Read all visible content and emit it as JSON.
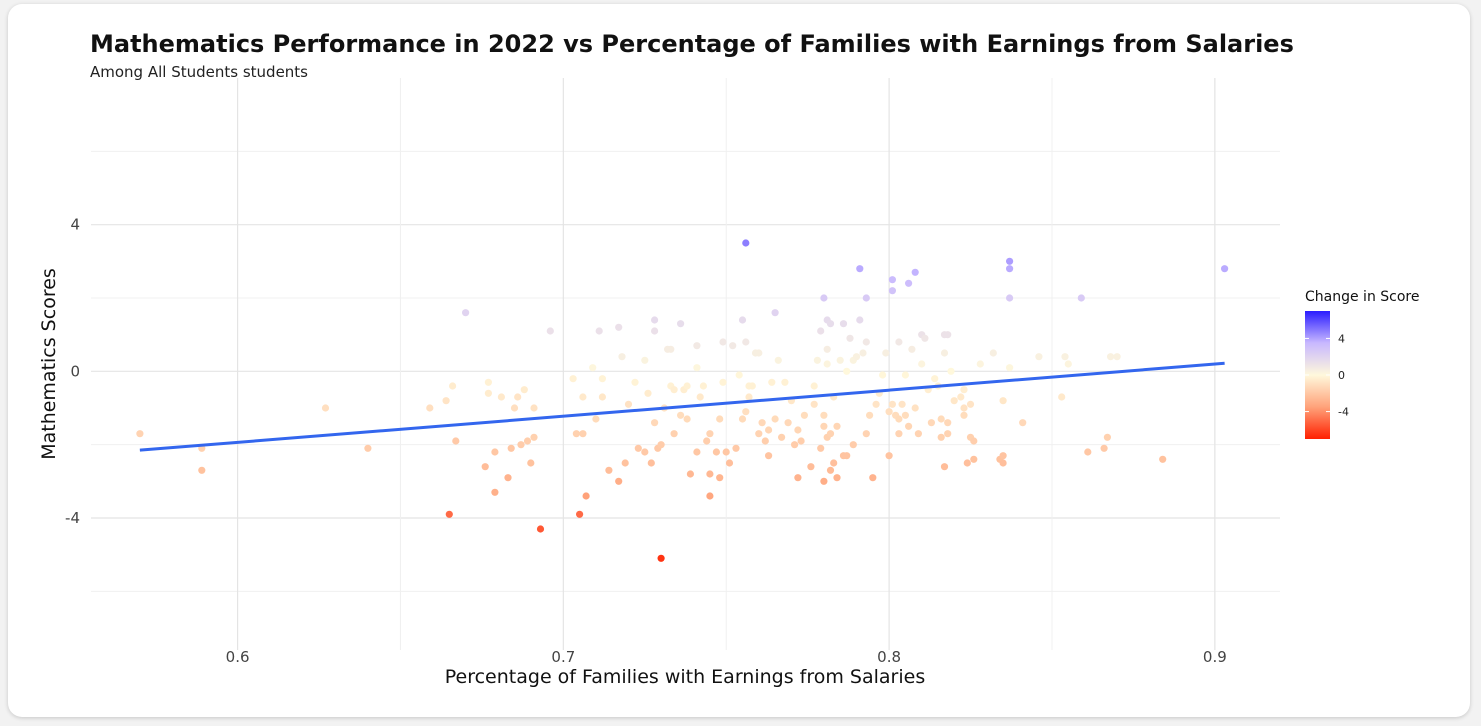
{
  "chart_data": {
    "type": "scatter",
    "title": "Mathematics Performance in 2022 vs Percentage of Families with Earnings from Salaries",
    "subtitle": "Among All Students students",
    "xlabel": "Percentage of Families with Earnings from Salaries",
    "ylabel": "Mathematics Scores",
    "xlim": [
      0.555,
      0.92
    ],
    "ylim": [
      -7.6,
      8.0
    ],
    "x_ticks": [
      0.6,
      0.7,
      0.8,
      0.9
    ],
    "x_tick_labels": [
      "0.6",
      "0.7",
      "0.8",
      "0.9"
    ],
    "y_ticks": [
      -4,
      0,
      4
    ],
    "y_tick_labels": [
      "-4",
      "0",
      "4"
    ],
    "grid": true,
    "legend": {
      "title": "Change in Score",
      "position": "right",
      "ticks": [
        4,
        0,
        -4
      ],
      "tick_labels": [
        "4",
        "0",
        "-4"
      ],
      "range": [
        -7,
        7
      ],
      "colors": {
        "low": "#ff2000",
        "mid": "#fff8dc",
        "high": "#2a1cff"
      }
    },
    "trend_line": {
      "x": [
        0.57,
        0.903
      ],
      "y": [
        -2.15,
        0.22
      ],
      "color": "#3366ee"
    },
    "points": [
      {
        "x": 0.57,
        "y": -1.7,
        "c": -1.5
      },
      {
        "x": 0.589,
        "y": -2.1,
        "c": -1.6
      },
      {
        "x": 0.589,
        "y": -2.7,
        "c": -2.2
      },
      {
        "x": 0.627,
        "y": -1.0,
        "c": -1.0
      },
      {
        "x": 0.64,
        "y": -2.1,
        "c": -1.8
      },
      {
        "x": 0.659,
        "y": -1.0,
        "c": -1.0
      },
      {
        "x": 0.664,
        "y": -0.8,
        "c": -0.8
      },
      {
        "x": 0.665,
        "y": -3.9,
        "c": -5.0
      },
      {
        "x": 0.666,
        "y": -0.4,
        "c": -0.5
      },
      {
        "x": 0.667,
        "y": -1.9,
        "c": -1.9
      },
      {
        "x": 0.67,
        "y": 1.6,
        "c": 2.0
      },
      {
        "x": 0.676,
        "y": -2.6,
        "c": -2.4
      },
      {
        "x": 0.677,
        "y": -0.3,
        "c": -0.3
      },
      {
        "x": 0.677,
        "y": -0.6,
        "c": -0.5
      },
      {
        "x": 0.679,
        "y": -3.3,
        "c": -2.9
      },
      {
        "x": 0.679,
        "y": -2.2,
        "c": -2.0
      },
      {
        "x": 0.681,
        "y": -0.7,
        "c": -0.6
      },
      {
        "x": 0.683,
        "y": -2.9,
        "c": -2.8
      },
      {
        "x": 0.684,
        "y": -2.1,
        "c": -2.0
      },
      {
        "x": 0.685,
        "y": -1.0,
        "c": -1.0
      },
      {
        "x": 0.686,
        "y": -0.7,
        "c": -0.8
      },
      {
        "x": 0.687,
        "y": -2.0,
        "c": -1.8
      },
      {
        "x": 0.688,
        "y": -0.5,
        "c": -0.5
      },
      {
        "x": 0.689,
        "y": -1.9,
        "c": -1.7
      },
      {
        "x": 0.69,
        "y": -2.5,
        "c": -2.2
      },
      {
        "x": 0.691,
        "y": -1.8,
        "c": -1.6
      },
      {
        "x": 0.691,
        "y": -1.0,
        "c": -0.9
      },
      {
        "x": 0.693,
        "y": -4.3,
        "c": -5.5
      },
      {
        "x": 0.696,
        "y": 1.1,
        "c": 1.3
      },
      {
        "x": 0.703,
        "y": -0.2,
        "c": -0.3
      },
      {
        "x": 0.704,
        "y": -1.7,
        "c": -1.6
      },
      {
        "x": 0.705,
        "y": -3.9,
        "c": -5.0
      },
      {
        "x": 0.706,
        "y": -0.7,
        "c": -0.6
      },
      {
        "x": 0.706,
        "y": -1.7,
        "c": -1.6
      },
      {
        "x": 0.707,
        "y": -3.4,
        "c": -3.5
      },
      {
        "x": 0.709,
        "y": 0.1,
        "c": 0.1
      },
      {
        "x": 0.71,
        "y": -1.3,
        "c": -1.2
      },
      {
        "x": 0.711,
        "y": 1.1,
        "c": 1.3
      },
      {
        "x": 0.712,
        "y": -0.2,
        "c": -0.2
      },
      {
        "x": 0.712,
        "y": -0.7,
        "c": -0.7
      },
      {
        "x": 0.714,
        "y": -2.7,
        "c": -2.4
      },
      {
        "x": 0.717,
        "y": 1.2,
        "c": 1.3
      },
      {
        "x": 0.717,
        "y": -3.0,
        "c": -3.0
      },
      {
        "x": 0.718,
        "y": 0.4,
        "c": 0.5
      },
      {
        "x": 0.719,
        "y": -2.5,
        "c": -2.2
      },
      {
        "x": 0.72,
        "y": -0.9,
        "c": -0.9
      },
      {
        "x": 0.722,
        "y": -0.3,
        "c": -0.2
      },
      {
        "x": 0.723,
        "y": -2.1,
        "c": -1.9
      },
      {
        "x": 0.725,
        "y": -2.2,
        "c": -1.9
      },
      {
        "x": 0.725,
        "y": 0.3,
        "c": 0.3
      },
      {
        "x": 0.726,
        "y": -0.6,
        "c": -0.5
      },
      {
        "x": 0.727,
        "y": -2.5,
        "c": -2.3
      },
      {
        "x": 0.728,
        "y": 1.4,
        "c": 1.6
      },
      {
        "x": 0.728,
        "y": 1.1,
        "c": 1.3
      },
      {
        "x": 0.728,
        "y": -1.4,
        "c": -1.3
      },
      {
        "x": 0.729,
        "y": -2.1,
        "c": -1.9
      },
      {
        "x": 0.73,
        "y": -2.0,
        "c": -1.8
      },
      {
        "x": 0.73,
        "y": -5.1,
        "c": -6.5
      },
      {
        "x": 0.731,
        "y": -1.0,
        "c": -0.9
      },
      {
        "x": 0.732,
        "y": 0.6,
        "c": 0.6
      },
      {
        "x": 0.733,
        "y": 0.6,
        "c": 0.6
      },
      {
        "x": 0.733,
        "y": -0.4,
        "c": -0.3
      },
      {
        "x": 0.734,
        "y": -0.5,
        "c": -0.4
      },
      {
        "x": 0.734,
        "y": -1.7,
        "c": -1.6
      },
      {
        "x": 0.736,
        "y": -1.2,
        "c": -1.1
      },
      {
        "x": 0.736,
        "y": 1.3,
        "c": 1.5
      },
      {
        "x": 0.737,
        "y": -0.5,
        "c": -0.4
      },
      {
        "x": 0.738,
        "y": -1.3,
        "c": -1.2
      },
      {
        "x": 0.738,
        "y": -0.4,
        "c": -0.3
      },
      {
        "x": 0.739,
        "y": -2.8,
        "c": -2.6
      },
      {
        "x": 0.741,
        "y": 0.7,
        "c": 0.8
      },
      {
        "x": 0.741,
        "y": -2.2,
        "c": -2.0
      },
      {
        "x": 0.741,
        "y": 0.1,
        "c": 0.1
      },
      {
        "x": 0.742,
        "y": -0.7,
        "c": -0.6
      },
      {
        "x": 0.743,
        "y": -0.4,
        "c": -0.3
      },
      {
        "x": 0.744,
        "y": -1.9,
        "c": -1.7
      },
      {
        "x": 0.745,
        "y": -1.7,
        "c": -1.5
      },
      {
        "x": 0.745,
        "y": -2.8,
        "c": -2.6
      },
      {
        "x": 0.745,
        "y": -3.4,
        "c": -3.3
      },
      {
        "x": 0.747,
        "y": -2.2,
        "c": -2.0
      },
      {
        "x": 0.748,
        "y": -2.9,
        "c": -2.7
      },
      {
        "x": 0.748,
        "y": -1.3,
        "c": -1.2
      },
      {
        "x": 0.749,
        "y": 0.8,
        "c": 0.9
      },
      {
        "x": 0.749,
        "y": -0.3,
        "c": -0.2
      },
      {
        "x": 0.75,
        "y": -2.2,
        "c": -2.0
      },
      {
        "x": 0.751,
        "y": -2.5,
        "c": -2.3
      },
      {
        "x": 0.752,
        "y": 0.7,
        "c": 0.8
      },
      {
        "x": 0.753,
        "y": -2.1,
        "c": -1.9
      },
      {
        "x": 0.754,
        "y": -0.1,
        "c": -0.1
      },
      {
        "x": 0.755,
        "y": 1.4,
        "c": 1.6
      },
      {
        "x": 0.755,
        "y": -1.3,
        "c": -1.2
      },
      {
        "x": 0.756,
        "y": 0.8,
        "c": 0.9
      },
      {
        "x": 0.756,
        "y": -1.1,
        "c": -1.0
      },
      {
        "x": 0.756,
        "y": 3.5,
        "c": 4.8
      },
      {
        "x": 0.757,
        "y": -0.4,
        "c": -0.3
      },
      {
        "x": 0.757,
        "y": -0.7,
        "c": -0.6
      },
      {
        "x": 0.758,
        "y": -0.4,
        "c": -0.3
      },
      {
        "x": 0.759,
        "y": 0.5,
        "c": 0.5
      },
      {
        "x": 0.76,
        "y": -1.7,
        "c": -1.5
      },
      {
        "x": 0.76,
        "y": 0.5,
        "c": 0.5
      },
      {
        "x": 0.761,
        "y": -1.4,
        "c": -1.3
      },
      {
        "x": 0.762,
        "y": -1.9,
        "c": -1.7
      },
      {
        "x": 0.763,
        "y": -2.3,
        "c": -2.1
      },
      {
        "x": 0.763,
        "y": -1.6,
        "c": -1.4
      },
      {
        "x": 0.764,
        "y": -0.3,
        "c": -0.3
      },
      {
        "x": 0.765,
        "y": 1.6,
        "c": 2.0
      },
      {
        "x": 0.765,
        "y": -1.3,
        "c": -1.2
      },
      {
        "x": 0.766,
        "y": 0.3,
        "c": 0.3
      },
      {
        "x": 0.767,
        "y": -1.8,
        "c": -1.6
      },
      {
        "x": 0.768,
        "y": -0.3,
        "c": -0.3
      },
      {
        "x": 0.769,
        "y": -1.4,
        "c": -1.3
      },
      {
        "x": 0.77,
        "y": -0.8,
        "c": -0.7
      },
      {
        "x": 0.771,
        "y": -2.0,
        "c": -1.8
      },
      {
        "x": 0.772,
        "y": -1.6,
        "c": -1.4
      },
      {
        "x": 0.772,
        "y": -2.9,
        "c": -2.8
      },
      {
        "x": 0.773,
        "y": -1.9,
        "c": -1.7
      },
      {
        "x": 0.774,
        "y": -1.2,
        "c": -1.1
      },
      {
        "x": 0.776,
        "y": -2.6,
        "c": -2.4
      },
      {
        "x": 0.777,
        "y": -0.9,
        "c": -0.8
      },
      {
        "x": 0.777,
        "y": -0.4,
        "c": -0.3
      },
      {
        "x": 0.778,
        "y": 0.3,
        "c": 0.3
      },
      {
        "x": 0.779,
        "y": -2.1,
        "c": -1.9
      },
      {
        "x": 0.779,
        "y": 1.1,
        "c": 1.3
      },
      {
        "x": 0.78,
        "y": -3.0,
        "c": -3.0
      },
      {
        "x": 0.78,
        "y": 2.0,
        "c": 2.5
      },
      {
        "x": 0.78,
        "y": -1.2,
        "c": -1.1
      },
      {
        "x": 0.78,
        "y": -1.5,
        "c": -1.4
      },
      {
        "x": 0.781,
        "y": -1.8,
        "c": -1.6
      },
      {
        "x": 0.781,
        "y": 1.4,
        "c": 1.6
      },
      {
        "x": 0.781,
        "y": 0.6,
        "c": 0.6
      },
      {
        "x": 0.781,
        "y": 0.2,
        "c": 0.2
      },
      {
        "x": 0.782,
        "y": -2.7,
        "c": -2.5
      },
      {
        "x": 0.782,
        "y": -1.7,
        "c": -1.5
      },
      {
        "x": 0.782,
        "y": 1.3,
        "c": 1.5
      },
      {
        "x": 0.783,
        "y": -2.5,
        "c": -2.3
      },
      {
        "x": 0.783,
        "y": -0.7,
        "c": -0.6
      },
      {
        "x": 0.784,
        "y": -2.9,
        "c": -2.8
      },
      {
        "x": 0.784,
        "y": -1.5,
        "c": -1.4
      },
      {
        "x": 0.785,
        "y": 0.3,
        "c": 0.3
      },
      {
        "x": 0.786,
        "y": -2.3,
        "c": -2.1
      },
      {
        "x": 0.786,
        "y": 1.3,
        "c": 1.5
      },
      {
        "x": 0.787,
        "y": 0.0,
        "c": 0.0
      },
      {
        "x": 0.787,
        "y": -2.3,
        "c": -2.1
      },
      {
        "x": 0.788,
        "y": 0.9,
        "c": 1.0
      },
      {
        "x": 0.789,
        "y": -2.0,
        "c": -1.8
      },
      {
        "x": 0.789,
        "y": 0.3,
        "c": 0.3
      },
      {
        "x": 0.79,
        "y": 0.4,
        "c": 0.4
      },
      {
        "x": 0.791,
        "y": 2.8,
        "c": 3.8
      },
      {
        "x": 0.791,
        "y": 1.4,
        "c": 1.6
      },
      {
        "x": 0.792,
        "y": 0.5,
        "c": 0.5
      },
      {
        "x": 0.793,
        "y": 2.0,
        "c": 2.5
      },
      {
        "x": 0.793,
        "y": 0.8,
        "c": 0.9
      },
      {
        "x": 0.793,
        "y": -1.7,
        "c": -1.5
      },
      {
        "x": 0.794,
        "y": -1.2,
        "c": -1.1
      },
      {
        "x": 0.795,
        "y": -2.9,
        "c": -2.8
      },
      {
        "x": 0.796,
        "y": -0.9,
        "c": -0.8
      },
      {
        "x": 0.797,
        "y": -0.6,
        "c": -0.5
      },
      {
        "x": 0.798,
        "y": -0.1,
        "c": -0.1
      },
      {
        "x": 0.799,
        "y": 0.5,
        "c": 0.5
      },
      {
        "x": 0.8,
        "y": -1.1,
        "c": -1.0
      },
      {
        "x": 0.8,
        "y": -2.3,
        "c": -2.1
      },
      {
        "x": 0.801,
        "y": 2.5,
        "c": 3.3
      },
      {
        "x": 0.801,
        "y": 2.2,
        "c": 2.9
      },
      {
        "x": 0.801,
        "y": -0.9,
        "c": -0.8
      },
      {
        "x": 0.802,
        "y": -1.2,
        "c": -1.1
      },
      {
        "x": 0.803,
        "y": 0.8,
        "c": 0.9
      },
      {
        "x": 0.803,
        "y": -1.7,
        "c": -1.5
      },
      {
        "x": 0.803,
        "y": -1.3,
        "c": -1.2
      },
      {
        "x": 0.804,
        "y": -0.9,
        "c": -0.8
      },
      {
        "x": 0.805,
        "y": -0.1,
        "c": -0.1
      },
      {
        "x": 0.805,
        "y": -1.2,
        "c": -1.1
      },
      {
        "x": 0.806,
        "y": 2.4,
        "c": 3.2
      },
      {
        "x": 0.806,
        "y": -1.5,
        "c": -1.4
      },
      {
        "x": 0.807,
        "y": 0.6,
        "c": 0.6
      },
      {
        "x": 0.808,
        "y": 2.7,
        "c": 3.6
      },
      {
        "x": 0.808,
        "y": -1.0,
        "c": -0.9
      },
      {
        "x": 0.809,
        "y": -1.7,
        "c": -1.5
      },
      {
        "x": 0.81,
        "y": 1.0,
        "c": 1.2
      },
      {
        "x": 0.81,
        "y": 0.2,
        "c": 0.2
      },
      {
        "x": 0.811,
        "y": 0.9,
        "c": 1.0
      },
      {
        "x": 0.812,
        "y": -0.5,
        "c": -0.4
      },
      {
        "x": 0.813,
        "y": -1.4,
        "c": -1.3
      },
      {
        "x": 0.814,
        "y": -0.2,
        "c": -0.2
      },
      {
        "x": 0.815,
        "y": -0.4,
        "c": -0.3
      },
      {
        "x": 0.816,
        "y": -1.8,
        "c": -1.6
      },
      {
        "x": 0.816,
        "y": -1.3,
        "c": -1.2
      },
      {
        "x": 0.817,
        "y": 1.0,
        "c": 1.2
      },
      {
        "x": 0.817,
        "y": 0.5,
        "c": 0.5
      },
      {
        "x": 0.817,
        "y": -2.6,
        "c": -2.4
      },
      {
        "x": 0.818,
        "y": 1.0,
        "c": 1.2
      },
      {
        "x": 0.818,
        "y": -1.7,
        "c": -1.5
      },
      {
        "x": 0.818,
        "y": -1.4,
        "c": -1.3
      },
      {
        "x": 0.819,
        "y": 0.0,
        "c": 0.0
      },
      {
        "x": 0.82,
        "y": -0.8,
        "c": -0.7
      },
      {
        "x": 0.822,
        "y": -0.7,
        "c": -0.6
      },
      {
        "x": 0.823,
        "y": -1.2,
        "c": -1.1
      },
      {
        "x": 0.823,
        "y": -1.0,
        "c": -0.9
      },
      {
        "x": 0.823,
        "y": -0.5,
        "c": -0.4
      },
      {
        "x": 0.824,
        "y": -2.5,
        "c": -2.3
      },
      {
        "x": 0.825,
        "y": -0.9,
        "c": -0.8
      },
      {
        "x": 0.825,
        "y": -1.8,
        "c": -1.6
      },
      {
        "x": 0.826,
        "y": -1.9,
        "c": -1.7
      },
      {
        "x": 0.826,
        "y": -2.4,
        "c": -2.2
      },
      {
        "x": 0.828,
        "y": 0.2,
        "c": 0.2
      },
      {
        "x": 0.832,
        "y": 0.5,
        "c": 0.5
      },
      {
        "x": 0.834,
        "y": -2.4,
        "c": -2.2
      },
      {
        "x": 0.835,
        "y": -2.5,
        "c": -2.3
      },
      {
        "x": 0.835,
        "y": -2.3,
        "c": -2.1
      },
      {
        "x": 0.835,
        "y": -0.8,
        "c": -0.7
      },
      {
        "x": 0.837,
        "y": 3.0,
        "c": 4.1
      },
      {
        "x": 0.837,
        "y": 2.8,
        "c": 3.8
      },
      {
        "x": 0.837,
        "y": 2.0,
        "c": 2.5
      },
      {
        "x": 0.837,
        "y": 0.1,
        "c": 0.1
      },
      {
        "x": 0.841,
        "y": -1.4,
        "c": -1.3
      },
      {
        "x": 0.846,
        "y": 0.4,
        "c": 0.4
      },
      {
        "x": 0.853,
        "y": -0.7,
        "c": -0.6
      },
      {
        "x": 0.854,
        "y": 0.4,
        "c": 0.4
      },
      {
        "x": 0.855,
        "y": 0.2,
        "c": 0.2
      },
      {
        "x": 0.859,
        "y": 2.0,
        "c": 2.5
      },
      {
        "x": 0.861,
        "y": -2.2,
        "c": -2.0
      },
      {
        "x": 0.866,
        "y": -2.1,
        "c": -1.9
      },
      {
        "x": 0.867,
        "y": -1.8,
        "c": -1.6
      },
      {
        "x": 0.868,
        "y": 0.4,
        "c": 0.4
      },
      {
        "x": 0.87,
        "y": 0.4,
        "c": 0.4
      },
      {
        "x": 0.884,
        "y": -2.4,
        "c": -2.2
      },
      {
        "x": 0.903,
        "y": 2.8,
        "c": 3.8
      }
    ]
  }
}
